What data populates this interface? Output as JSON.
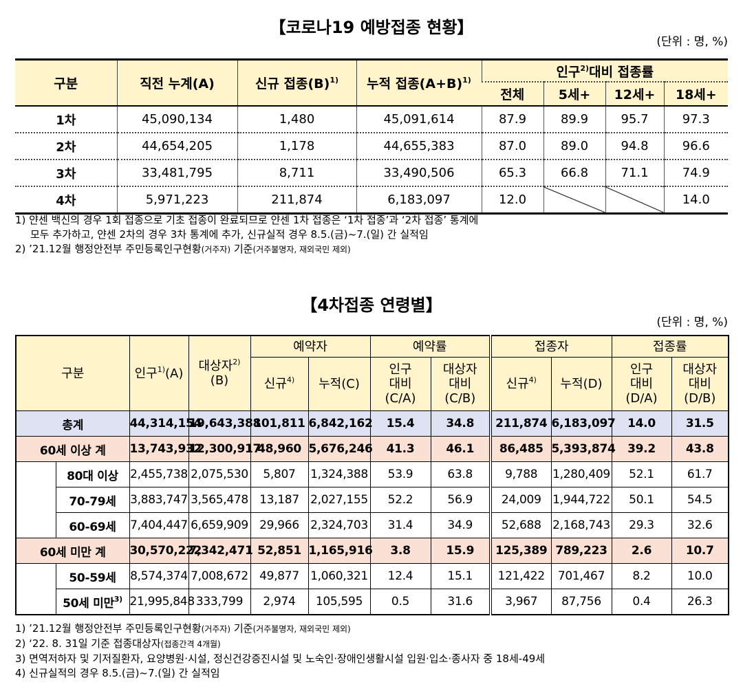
{
  "table1": {
    "title": "【코로나19 예방접종 현황】",
    "unit": "(단위 : 명, %)",
    "header": {
      "category": "구분",
      "columns": [
        {
          "text": "직전 누계(A)"
        },
        {
          "text": "신규 접종(B)",
          "note": "1)"
        },
        {
          "text": "누적 접종(A+B)",
          "note": "1)"
        }
      ],
      "group": {
        "text": "인구",
        "note": "2)",
        "after": "대비 접종률"
      },
      "sub_columns": [
        "전체",
        "5세+",
        "12세+",
        "18세+"
      ]
    },
    "rows": [
      {
        "label": "1차",
        "values": [
          "45,090,134",
          "1,480",
          "45,091,614",
          "87.9",
          "89.9",
          "95.7",
          "97.3"
        ]
      },
      {
        "label": "2차",
        "values": [
          "44,654,205",
          "1,178",
          "44,655,383",
          "87.0",
          "89.0",
          "94.8",
          "96.6"
        ]
      },
      {
        "label": "3차",
        "values": [
          "33,481,795",
          "8,711",
          "33,490,506",
          "65.3",
          "66.8",
          "71.1",
          "74.9"
        ]
      },
      {
        "label": "4차",
        "values": [
          "5,971,223",
          "211,874",
          "6,183,097",
          "12.0",
          null,
          null,
          "14.0"
        ]
      }
    ],
    "notes": [
      {
        "lines": [
          [
            "1) 얀센 백신의 경우 1회 접종으로 기초 접종이 완료되므로 얀센 1차 접종은 ‘1차 접종’과 ‘2차 접종’ 통계에"
          ],
          [
            "모두 추가하고, 얀센 2차의 경우 3차 통계에 추가, 신규실적 경우 8.5.(금)~7.(일) 간 실적임"
          ]
        ]
      },
      {
        "lines": [
          [
            "2) ’21.12월 행정안전부 주민등록인구현황",
            "(거주자)",
            " 기준",
            "(거주불명자, 재외국민 제외)"
          ]
        ]
      }
    ]
  },
  "table2": {
    "title": "【4차접종 연령별】",
    "unit": "(단위 : 명, %)",
    "header": {
      "category": "구분",
      "population": {
        "text": "인구",
        "note": "1)",
        "sub": "(A)"
      },
      "target": {
        "text": "대상자",
        "note": "2)",
        "sub": "(B)"
      },
      "groups": [
        "예약자",
        "예약률",
        "접종자",
        "접종률"
      ],
      "sub_columns": [
        {
          "lines": [
            "신규"
          ],
          "note": "4)"
        },
        {
          "lines": [
            "누적(C)"
          ]
        },
        {
          "lines": [
            "인구",
            "대비",
            "(C/A)"
          ]
        },
        {
          "lines": [
            "대상자",
            "대비",
            "(C/B)"
          ]
        },
        {
          "lines": [
            "신규"
          ],
          "note": "4)"
        },
        {
          "lines": [
            "누적(D)"
          ]
        },
        {
          "lines": [
            "인구",
            "대비",
            "(D/A)"
          ]
        },
        {
          "lines": [
            "대상자",
            "대비",
            "(D/B)"
          ]
        }
      ]
    },
    "rows": [
      {
        "label": "총계",
        "values": [
          "44,314,154",
          "19,643,388",
          "101,811",
          "6,842,162",
          "15.4",
          "34.8",
          "211,874",
          "6,183,097",
          "14.0",
          "31.5"
        ]
      },
      {
        "label": "60세 이상 계",
        "values": [
          "13,743,932",
          "12,300,917",
          "48,960",
          "5,676,246",
          "41.3",
          "46.1",
          "86,485",
          "5,393,874",
          "39.2",
          "43.8"
        ]
      },
      {
        "label": "80대 이상",
        "values": [
          "2,455,738",
          "2,075,530",
          "5,807",
          "1,324,388",
          "53.9",
          "63.8",
          "9,788",
          "1,280,409",
          "52.1",
          "61.7"
        ]
      },
      {
        "label": "70-79세",
        "values": [
          "3,883,747",
          "3,565,478",
          "13,187",
          "2,027,155",
          "52.2",
          "56.9",
          "24,009",
          "1,944,722",
          "50.1",
          "54.5"
        ]
      },
      {
        "label": "60-69세",
        "values": [
          "7,404,447",
          "6,659,909",
          "29,966",
          "2,324,703",
          "31.4",
          "34.9",
          "52,688",
          "2,168,743",
          "29.3",
          "32.6"
        ]
      },
      {
        "label": "60세 미만 계",
        "values": [
          "30,570,222",
          "7,342,471",
          "52,851",
          "1,165,916",
          "3.8",
          "15.9",
          "125,389",
          "789,223",
          "2.6",
          "10.7"
        ]
      },
      {
        "label": "50-59세",
        "values": [
          "8,574,374",
          "7,008,672",
          "49,877",
          "1,060,321",
          "12.4",
          "15.1",
          "121,422",
          "701,467",
          "8.2",
          "10.0"
        ]
      },
      {
        "label": "50세 미만",
        "note": "3)",
        "values": [
          "21,995,848",
          "333,799",
          "2,974",
          "105,595",
          "0.5",
          "31.6",
          "3,967",
          "87,756",
          "0.4",
          "26.3"
        ]
      }
    ],
    "notes": [
      {
        "lines": [
          [
            "1) ’21.12월 행정안전부 주민등록인구현황",
            "(거주자)",
            " 기준",
            "(거주불명자, 재외국민 제외)"
          ]
        ]
      },
      {
        "lines": [
          [
            "2) ‘22. 8. 31일 기준 접종대상자",
            "(접종간격 4개월)"
          ]
        ]
      },
      {
        "lines": [
          [
            "3) 면역저하자 및 기저질환자, 요양병원·시설, 정신건강증진시설 및 노숙인·장애인생활시설 입원·입소·종사자 중 18세-49세"
          ]
        ]
      },
      {
        "lines": [
          [
            "4) 신규실적의 경우 8.5.(금)~7.(일) 간 실적임"
          ]
        ]
      }
    ]
  }
}
